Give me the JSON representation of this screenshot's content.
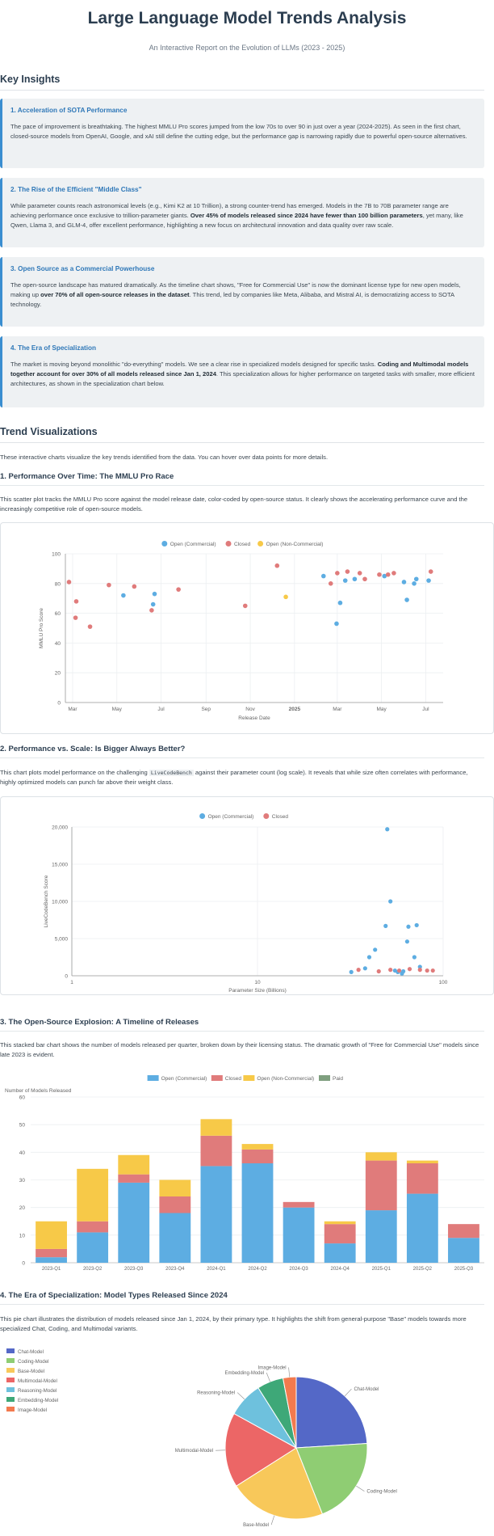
{
  "header": {
    "title": "Large Language Model Trends Analysis",
    "subtitle": "An Interactive Report on the Evolution of LLMs (2023 - 2025)"
  },
  "insights": {
    "heading": "Key Insights",
    "items": [
      {
        "title": "1. Acceleration of SOTA Performance",
        "text": "The pace of improvement is breathtaking. The highest MMLU Pro scores jumped from the low 70s to over 90 in just over a year (2024-2025). As seen in the first chart, closed-source models from OpenAI, Google, and xAI still define the cutting edge, but the performance gap is narrowing rapidly due to powerful open-source alternatives."
      },
      {
        "title": "2. The Rise of the Efficient \"Middle Class\"",
        "text_before": "While parameter counts reach astronomical levels (e.g., Kimi K2 at 10 Trillion), a strong counter-trend has emerged. Models in the 7B to 70B parameter range are achieving performance once exclusive to trillion-parameter giants. ",
        "text_bold": "Over 45% of models released since 2024 have fewer than 100 billion parameters",
        "text_after": ", yet many, like Qwen, Llama 3, and GLM-4, offer excellent performance, highlighting a new focus on architectural innovation and data quality over raw scale."
      },
      {
        "title": "3. Open Source as a Commercial Powerhouse",
        "text_before": "The open-source landscape has matured dramatically. As the timeline chart shows, \"Free for Commercial Use\" is now the dominant license type for new open models, making up ",
        "text_bold": "over 70% of all open-source releases in the dataset",
        "text_after": ". This trend, led by companies like Meta, Alibaba, and Mistral AI, is democratizing access to SOTA technology."
      },
      {
        "title": "4. The Era of Specialization",
        "text_before": "The market is moving beyond monolithic \"do-everything\" models. We see a clear rise in specialized models designed for specific tasks. ",
        "text_bold": "Coding and Multimodal models together account for over 30% of all models released since Jan 1, 2024",
        "text_after": ". This specialization allows for higher performance on targeted tasks with smaller, more efficient architectures, as shown in the specialization chart below."
      }
    ]
  },
  "visualizations": {
    "heading": "Trend Visualizations",
    "intro": "These interactive charts visualize the key trends identified from the data. You can hover over data points for more details.",
    "c1": {
      "heading": "1. Performance Over Time: The MMLU Pro Race",
      "desc": "This scatter plot tracks the MMLU Pro score against the model release date, color-coded by open-source status. It clearly shows the accelerating performance curve and the increasingly competitive role of open-source models."
    },
    "c2": {
      "heading": "2. Performance vs. Scale: Is Bigger Always Better?",
      "desc_before": "This chart plots model performance on the challenging ",
      "desc_code": "LiveCodeBench",
      "desc_after": " against their parameter count (log scale). It reveals that while size often correlates with performance, highly optimized models can punch far above their weight class."
    },
    "c3": {
      "heading": "3. The Open-Source Explosion: A Timeline of Releases",
      "desc": "This stacked bar chart shows the number of models released per quarter, broken down by their licensing status. The dramatic growth of \"Free for Commercial Use\" models since late 2023 is evident."
    },
    "c4": {
      "heading": "4. The Era of Specialization: Model Types Released Since 2024",
      "desc": "This pie chart illustrates the distribution of models released since Jan 1, 2024, by their primary type. It highlights the shift from general-purpose \"Base\" models towards more specialized Chat, Coding, and Multimodal variants."
    }
  },
  "colors": {
    "open": "#5dade2",
    "closed": "#e07b7b",
    "noncommercial": "#f7c948",
    "paid": "#7f9f7f",
    "grid": "#eceff1",
    "axis": "#7a8590",
    "pie": [
      "#5468c7",
      "#8fcd73",
      "#f8c85a",
      "#ec6666",
      "#6ec1dd",
      "#3ea878",
      "#f37a4e"
    ]
  },
  "chart_data": [
    {
      "id": "mmlu_time",
      "type": "scatter",
      "title": "",
      "xlabel": "Release Date",
      "ylabel": "MMLU Pro Score",
      "ylim": [
        0,
        100
      ],
      "yticks": [
        0,
        20,
        40,
        60,
        80,
        100
      ],
      "xlim": [
        "2024-02-20",
        "2025-07-25"
      ],
      "xticks": [
        {
          "date": "2024-03-01",
          "label": "Mar"
        },
        {
          "date": "2024-05-01",
          "label": "May"
        },
        {
          "date": "2024-07-01",
          "label": "Jul"
        },
        {
          "date": "2024-09-01",
          "label": "Sep"
        },
        {
          "date": "2024-11-01",
          "label": "Nov"
        },
        {
          "date": "2025-01-01",
          "label": "2025"
        },
        {
          "date": "2025-03-01",
          "label": "Mar"
        },
        {
          "date": "2025-05-01",
          "label": "May"
        },
        {
          "date": "2025-07-01",
          "label": "Jul"
        }
      ],
      "legend_position": "top",
      "series": [
        {
          "name": "Open (Commercial)",
          "points": [
            [
              "2024-05-10",
              72
            ],
            [
              "2024-06-20",
              66
            ],
            [
              "2024-06-22",
              73
            ],
            [
              "2025-02-10",
              85
            ],
            [
              "2025-02-28",
              53
            ],
            [
              "2025-03-05",
              67
            ],
            [
              "2025-03-12",
              82
            ],
            [
              "2025-03-25",
              83
            ],
            [
              "2025-05-05",
              85
            ],
            [
              "2025-06-01",
              81
            ],
            [
              "2025-06-05",
              69
            ],
            [
              "2025-06-15",
              80
            ],
            [
              "2025-06-18",
              83
            ],
            [
              "2025-07-05",
              82
            ]
          ]
        },
        {
          "name": "Closed",
          "points": [
            [
              "2024-02-25",
              81
            ],
            [
              "2024-03-05",
              57
            ],
            [
              "2024-03-06",
              68
            ],
            [
              "2024-03-25",
              51
            ],
            [
              "2024-04-20",
              79
            ],
            [
              "2024-05-25",
              78
            ],
            [
              "2024-06-18",
              62
            ],
            [
              "2024-07-25",
              76
            ],
            [
              "2024-10-25",
              65
            ],
            [
              "2024-12-08",
              92
            ],
            [
              "2025-02-20",
              80
            ],
            [
              "2025-03-01",
              87
            ],
            [
              "2025-03-15",
              88
            ],
            [
              "2025-04-01",
              87
            ],
            [
              "2025-04-08",
              83
            ],
            [
              "2025-04-28",
              86
            ],
            [
              "2025-05-10",
              86
            ],
            [
              "2025-05-18",
              87
            ],
            [
              "2025-07-08",
              88
            ]
          ]
        },
        {
          "name": "Open (Non-Commercial)",
          "points": [
            [
              "2024-12-20",
              71
            ]
          ]
        }
      ]
    },
    {
      "id": "livecode_scale",
      "type": "scatter",
      "title": "",
      "xlabel": "Parameter Size (Billions)",
      "ylabel": "LiveCodeBench Score",
      "xscale": "log",
      "xlim": [
        1,
        100
      ],
      "xticks": [
        1,
        10,
        100
      ],
      "ylim": [
        0,
        20000
      ],
      "yticks": [
        0,
        5000,
        10000,
        15000,
        20000
      ],
      "ytick_labels": [
        "0",
        "5,000",
        "10,000",
        "15,000",
        "20,000"
      ],
      "legend_position": "top",
      "series": [
        {
          "name": "Open (Commercial)",
          "points": [
            [
              32,
              500
            ],
            [
              38,
              1000
            ],
            [
              40,
              2500
            ],
            [
              43,
              3500
            ],
            [
              49,
              6700
            ],
            [
              50,
              19700
            ],
            [
              52,
              10000
            ],
            [
              55,
              700
            ],
            [
              57,
              500
            ],
            [
              60,
              300
            ],
            [
              61,
              600
            ],
            [
              64,
              4600
            ],
            [
              65,
              6600
            ],
            [
              70,
              2500
            ],
            [
              72,
              6800
            ],
            [
              75,
              1200
            ]
          ]
        },
        {
          "name": "Closed",
          "points": [
            [
              35,
              800
            ],
            [
              45,
              600
            ],
            [
              52,
              800
            ],
            [
              58,
              700
            ],
            [
              66,
              900
            ],
            [
              75,
              800
            ],
            [
              82,
              700
            ],
            [
              88,
              700
            ]
          ]
        }
      ]
    },
    {
      "id": "releases_timeline",
      "type": "bar",
      "stacked": true,
      "title": "",
      "ylabel": "Number of Models Released",
      "ylim": [
        0,
        60
      ],
      "yticks": [
        0,
        10,
        20,
        30,
        40,
        50,
        60
      ],
      "legend_position": "top",
      "categories": [
        "2023-Q1",
        "2023-Q2",
        "2023-Q3",
        "2023-Q4",
        "2024-Q1",
        "2024-Q2",
        "2024-Q3",
        "2024-Q4",
        "2025-Q1",
        "2025-Q2",
        "2025-Q3"
      ],
      "series": [
        {
          "name": "Open (Commercial)",
          "values": [
            2,
            11,
            29,
            18,
            35,
            36,
            20,
            7,
            19,
            25,
            9
          ]
        },
        {
          "name": "Closed",
          "values": [
            3,
            4,
            3,
            6,
            11,
            5,
            2,
            7,
            18,
            11,
            5
          ]
        },
        {
          "name": "Open (Non-Commercial)",
          "values": [
            10,
            19,
            7,
            6,
            6,
            2,
            0,
            1,
            3,
            1,
            0
          ]
        },
        {
          "name": "Paid",
          "values": [
            0,
            0,
            0,
            0,
            0,
            0,
            0,
            0,
            0,
            0,
            0
          ]
        }
      ]
    },
    {
      "id": "model_types",
      "type": "pie",
      "title": "",
      "legend_position": "left",
      "slices": [
        {
          "label": "Chat-Model",
          "value": 24
        },
        {
          "label": "Coding-Model",
          "value": 20
        },
        {
          "label": "Base-Model",
          "value": 22
        },
        {
          "label": "Multimodal-Model",
          "value": 17
        },
        {
          "label": "Reasoning-Model",
          "value": 8
        },
        {
          "label": "Embedding-Model",
          "value": 6
        },
        {
          "label": "Image-Model",
          "value": 3
        }
      ]
    }
  ]
}
